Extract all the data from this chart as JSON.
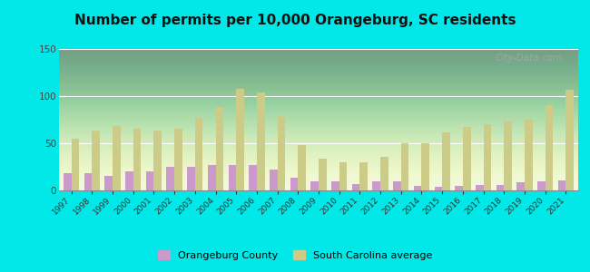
{
  "title": "Number of permits per 10,000 Orangeburg, SC residents",
  "years": [
    1997,
    1998,
    1999,
    2000,
    2001,
    2002,
    2003,
    2004,
    2005,
    2006,
    2007,
    2008,
    2009,
    2010,
    2011,
    2012,
    2013,
    2014,
    2015,
    2016,
    2017,
    2018,
    2019,
    2020,
    2021
  ],
  "orangeburg": [
    18,
    18,
    15,
    20,
    20,
    25,
    25,
    27,
    27,
    27,
    22,
    13,
    10,
    10,
    7,
    10,
    10,
    5,
    4,
    5,
    6,
    6,
    9,
    10,
    11
  ],
  "sc_average": [
    55,
    63,
    68,
    65,
    63,
    65,
    77,
    88,
    108,
    104,
    79,
    48,
    34,
    30,
    30,
    36,
    50,
    50,
    62,
    67,
    70,
    74,
    75,
    90,
    107
  ],
  "bar_color_orangeburg": "#cc99cc",
  "bar_color_sc": "#cccc88",
  "background_outer": "#00e8e8",
  "ylim": [
    0,
    150
  ],
  "yticks": [
    0,
    50,
    100,
    150
  ],
  "title_fontsize": 11,
  "legend_label_orangeburg": "Orangeburg County",
  "legend_label_sc": "South Carolina average",
  "watermark": "City-Data.com"
}
